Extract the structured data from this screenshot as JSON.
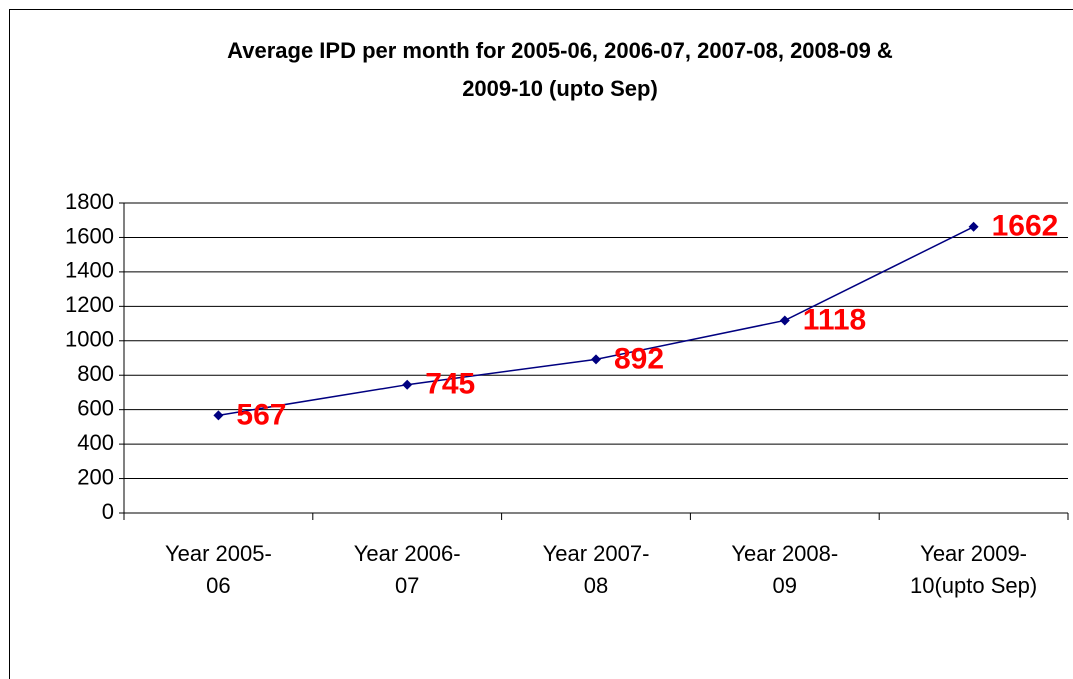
{
  "chart_data": {
    "type": "line",
    "title": "Average IPD per month for 2005-06, 2006-07, 2007-08, 2008-09 & 2009-10 (upto Sep)",
    "categories": [
      "Year 2005-06",
      "Year 2006-07",
      "Year 2007-08",
      "Year 2008-09",
      "Year 2009-10(upto Sep)"
    ],
    "values": [
      567,
      745,
      892,
      1118,
      1662
    ],
    "color": "#000080",
    "label_color": "#ff0000",
    "ylim": [
      0,
      1800
    ],
    "yticks": [
      0,
      200,
      400,
      600,
      800,
      1000,
      1200,
      1400,
      1600,
      1800
    ],
    "grid": true
  }
}
